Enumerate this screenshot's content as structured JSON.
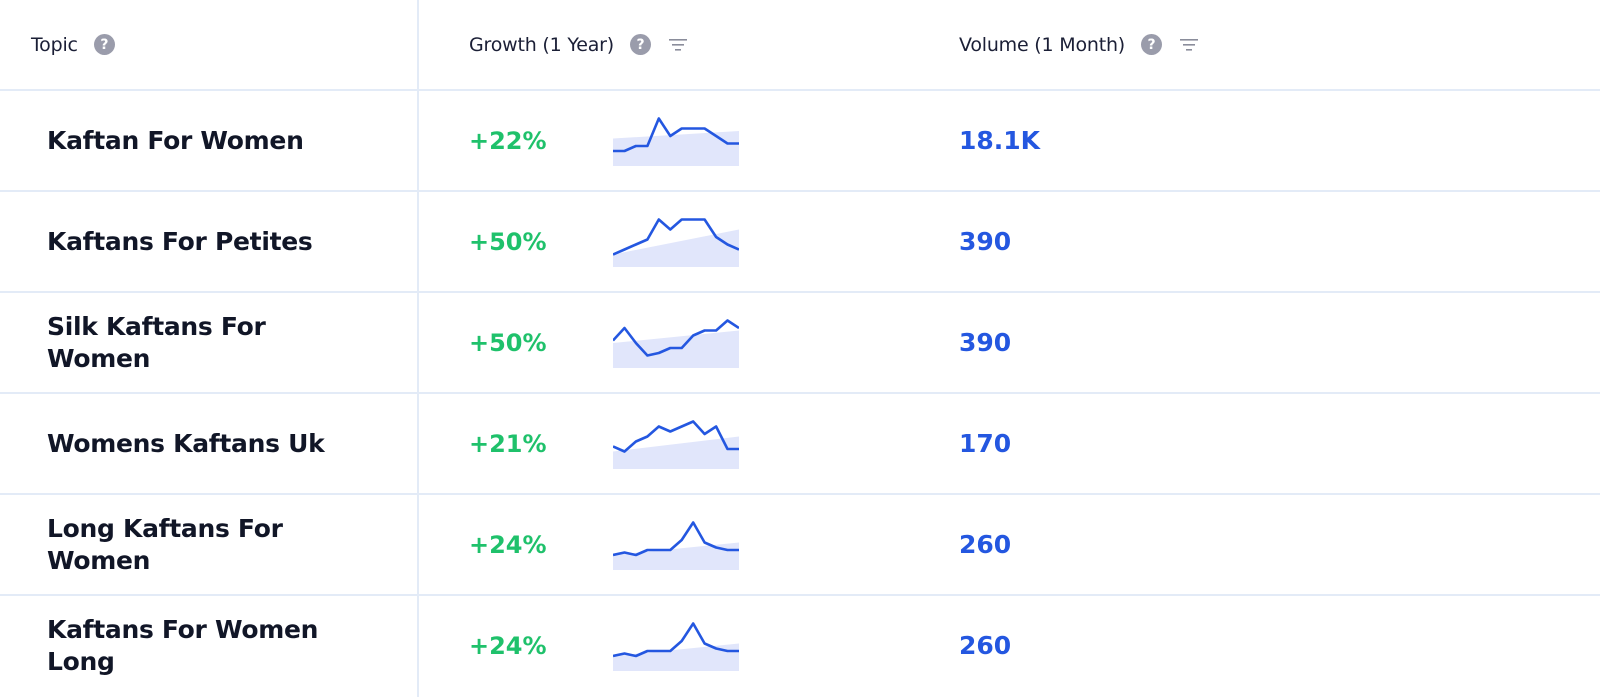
{
  "header": {
    "topic_label": "Topic",
    "growth_label": "Growth (1 Year)",
    "volume_label": "Volume (1 Month)",
    "help_glyph": "?"
  },
  "colors": {
    "growth": "#1fc16b",
    "volume": "#2457e0",
    "spark_line": "#2457e0",
    "spark_fill": "#e1e6fb",
    "divider": "#e3ebf7"
  },
  "rows": [
    {
      "topic": "Kaftan For Women",
      "growth": "+22%",
      "volume": "18.1K",
      "trend": [
        0.3,
        0.3,
        0.4,
        0.4,
        0.95,
        0.6,
        0.75,
        0.75,
        0.75,
        0.6,
        0.45,
        0.45
      ],
      "baseline": [
        0.55,
        0.7
      ]
    },
    {
      "topic": "Kaftans For Petites",
      "growth": "+50%",
      "volume": "390",
      "trend": [
        0.25,
        0.35,
        0.45,
        0.55,
        0.95,
        0.75,
        0.95,
        0.95,
        0.95,
        0.6,
        0.45,
        0.35
      ],
      "baseline": [
        0.25,
        0.75
      ]
    },
    {
      "topic": "Silk Kaftans For Women",
      "growth": "+50%",
      "volume": "390",
      "trend": [
        0.55,
        0.8,
        0.5,
        0.25,
        0.3,
        0.4,
        0.4,
        0.65,
        0.75,
        0.75,
        0.95,
        0.8
      ],
      "baseline": [
        0.5,
        0.75
      ]
    },
    {
      "topic": "Womens Kaftans Uk",
      "growth": "+21%",
      "volume": "170",
      "trend": [
        0.45,
        0.35,
        0.55,
        0.65,
        0.85,
        0.75,
        0.85,
        0.95,
        0.7,
        0.85,
        0.4,
        0.4
      ],
      "baseline": [
        0.35,
        0.65
      ]
    },
    {
      "topic": "Long Kaftans For Women",
      "growth": "+24%",
      "volume": "260",
      "trend": [
        0.3,
        0.35,
        0.3,
        0.4,
        0.4,
        0.4,
        0.6,
        0.95,
        0.55,
        0.45,
        0.4,
        0.4
      ],
      "baseline": [
        0.3,
        0.55
      ]
    },
    {
      "topic": "Kaftans For Women Long",
      "growth": "+24%",
      "volume": "260",
      "trend": [
        0.3,
        0.35,
        0.3,
        0.4,
        0.4,
        0.4,
        0.6,
        0.95,
        0.55,
        0.45,
        0.4,
        0.4
      ],
      "baseline": [
        0.3,
        0.55
      ]
    }
  ]
}
